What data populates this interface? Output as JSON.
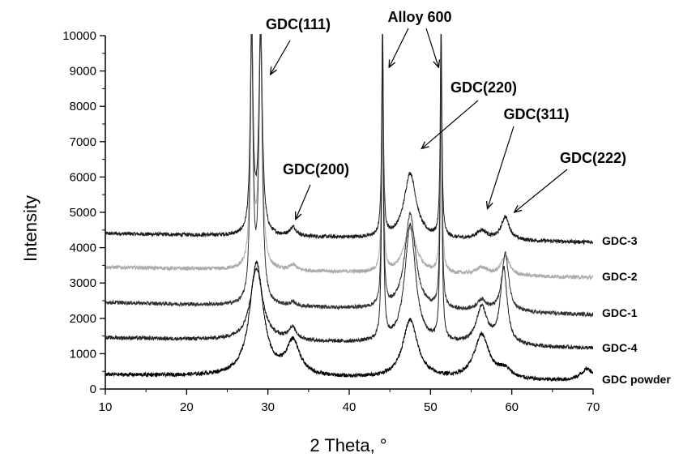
{
  "chart_data": {
    "type": "line",
    "xlabel": "2 Theta, °",
    "ylabel": "Intensity",
    "xlim": [
      10,
      70
    ],
    "ylim": [
      0,
      10000
    ],
    "xticks": [
      10,
      20,
      30,
      40,
      50,
      60,
      70
    ],
    "yticks": [
      0,
      1000,
      2000,
      3000,
      4000,
      5000,
      6000,
      7000,
      8000,
      9000,
      10000
    ],
    "grid": false,
    "legend": "right-of-curves",
    "series": [
      {
        "name": "GDC-3",
        "color": "#1a1a1a",
        "baseline": 4400,
        "end": 4150,
        "peaks": [
          {
            "center": 28.0,
            "height": 6000,
            "width": 0.2
          },
          {
            "center": 29.1,
            "height": 6000,
            "width": 0.25
          },
          {
            "center": 33.1,
            "height": 250,
            "width": 0.5
          },
          {
            "center": 44.1,
            "height": 6000,
            "width": 0.12
          },
          {
            "center": 47.5,
            "height": 1850,
            "width": 0.9
          },
          {
            "center": 51.3,
            "height": 6000,
            "width": 0.12
          },
          {
            "center": 56.3,
            "height": 250,
            "width": 0.8
          },
          {
            "center": 59.2,
            "height": 650,
            "width": 0.6
          }
        ]
      },
      {
        "name": "GDC-2",
        "color": "#aaaaaa",
        "baseline": 3450,
        "end": 3150,
        "peaks": [
          {
            "center": 28.0,
            "height": 6600,
            "width": 0.2
          },
          {
            "center": 29.1,
            "height": 6600,
            "width": 0.25
          },
          {
            "center": 33.1,
            "height": 150,
            "width": 0.5
          },
          {
            "center": 44.1,
            "height": 6600,
            "width": 0.12
          },
          {
            "center": 47.5,
            "height": 1300,
            "width": 0.9
          },
          {
            "center": 51.3,
            "height": 6600,
            "width": 0.12
          },
          {
            "center": 56.3,
            "height": 200,
            "width": 0.8
          },
          {
            "center": 59.2,
            "height": 550,
            "width": 0.6
          }
        ]
      },
      {
        "name": "GDC-1",
        "color": "#333333",
        "baseline": 2450,
        "end": 2100,
        "peaks": [
          {
            "center": 28.0,
            "height": 7600,
            "width": 0.2
          },
          {
            "center": 29.1,
            "height": 7600,
            "width": 0.25
          },
          {
            "center": 33.1,
            "height": 100,
            "width": 0.5
          },
          {
            "center": 44.1,
            "height": 7600,
            "width": 0.12
          },
          {
            "center": 47.5,
            "height": 2700,
            "width": 0.8
          },
          {
            "center": 51.3,
            "height": 7600,
            "width": 0.12
          },
          {
            "center": 56.3,
            "height": 300,
            "width": 0.7
          },
          {
            "center": 59.2,
            "height": 1650,
            "width": 0.5
          }
        ]
      },
      {
        "name": "GDC-4",
        "color": "#222222",
        "baseline": 1450,
        "end": 1150,
        "peaks": [
          {
            "center": 28.6,
            "height": 2050,
            "width": 0.9
          },
          {
            "center": 33.0,
            "height": 350,
            "width": 0.6
          },
          {
            "center": 44.1,
            "height": 8600,
            "width": 0.12
          },
          {
            "center": 47.5,
            "height": 3350,
            "width": 0.8
          },
          {
            "center": 51.3,
            "height": 8600,
            "width": 0.12
          },
          {
            "center": 56.3,
            "height": 1050,
            "width": 0.8
          },
          {
            "center": 59.0,
            "height": 2150,
            "width": 0.5
          }
        ]
      },
      {
        "name": "GDC powder",
        "color": "#000000",
        "baseline": 400,
        "end": 200,
        "peaks": [
          {
            "center": 28.6,
            "height": 3200,
            "width": 1.0
          },
          {
            "center": 33.1,
            "height": 950,
            "width": 1.0
          },
          {
            "center": 47.5,
            "height": 1650,
            "width": 1.1
          },
          {
            "center": 56.3,
            "height": 1250,
            "width": 1.1
          },
          {
            "center": 59.1,
            "height": 250,
            "width": 1.0
          },
          {
            "center": 69.3,
            "height": 350,
            "width": 1.0
          }
        ]
      }
    ],
    "annotations": [
      {
        "text": "GDC(111)",
        "target_x": 30.3,
        "target_y": 8900
      },
      {
        "text": "Alloy 600",
        "target_x": 44.9,
        "target_y": 9100
      },
      {
        "text": "",
        "target_x": 51.0,
        "target_y": 9100
      },
      {
        "text": "GDC(220)",
        "target_x": 48.9,
        "target_y": 6800
      },
      {
        "text": "GDC(311)",
        "target_x": 57.0,
        "target_y": 5100
      },
      {
        "text": "GDC(222)",
        "target_x": 60.3,
        "target_y": 5000
      },
      {
        "text": "GDC(200)",
        "target_x": 33.4,
        "target_y": 4800
      }
    ]
  }
}
